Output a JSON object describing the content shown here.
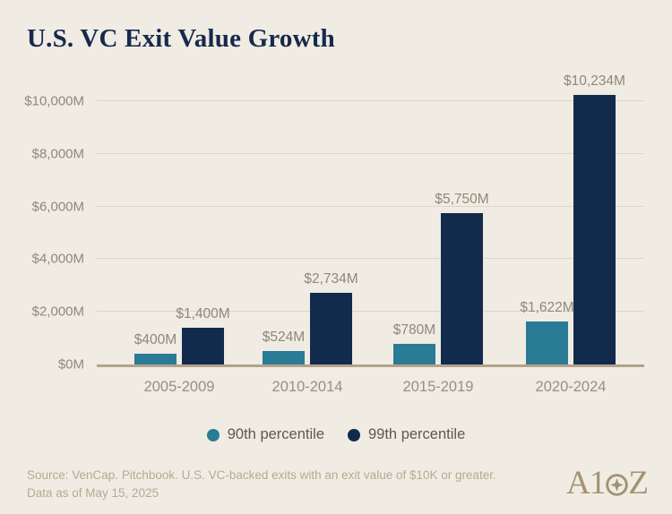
{
  "header": {
    "title": "U.S. VC Exit Value Growth"
  },
  "chart_data": {
    "type": "bar",
    "title": "U.S. VC Exit Value Growth",
    "categories": [
      "2005-2009",
      "2010-2014",
      "2015-2019",
      "2020-2024"
    ],
    "series": [
      {
        "name": "90th percentile",
        "color": "#2a7b96",
        "values": [
          400,
          524,
          780,
          1622
        ],
        "labels": [
          "$400M",
          "$524M",
          "$780M",
          "$1,622M"
        ]
      },
      {
        "name": "99th percentile",
        "color": "#122b4d",
        "values": [
          1400,
          2734,
          5750,
          10234
        ],
        "labels": [
          "$1,400M",
          "$2,734M",
          "$5,750M",
          "$10,234M"
        ]
      }
    ],
    "xlabel": "",
    "ylabel": "",
    "ylim": [
      0,
      10000
    ],
    "yticks": [
      0,
      2000,
      4000,
      6000,
      8000,
      10000
    ],
    "ytick_labels": [
      "$0M",
      "$2,000M",
      "$4,000M",
      "$6,000M",
      "$8,000M",
      "$10,000M"
    ],
    "grid": true,
    "legend_position": "bottom"
  },
  "legend": {
    "items": [
      {
        "label": "90th percentile",
        "color": "#2a7b96"
      },
      {
        "label": "99th percentile",
        "color": "#122b4d"
      }
    ]
  },
  "footer": {
    "source_line1": "Source: VenCap. Pitchbook. U.S. VC-backed exits with an exit value of $10K or greater.",
    "source_line2": "Data as of May 15, 2025",
    "logo_left": "A1",
    "logo_right": "Z"
  },
  "colors": {
    "background": "#f0ece3",
    "title": "#16294d",
    "teal_bar": "#2a7b96",
    "navy_bar": "#122b4d",
    "gridline": "#ddd6c3",
    "axis_line": "#b2a28b",
    "label_gray": "#8e887a",
    "footer_tan": "#b6a994",
    "logo_tan": "#a39374"
  }
}
